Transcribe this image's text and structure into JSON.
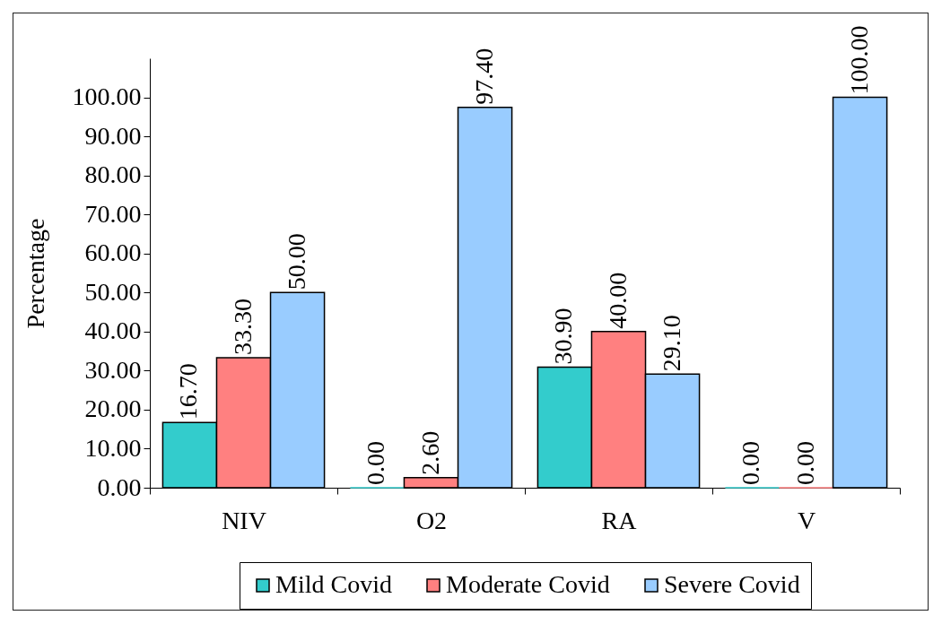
{
  "chart_data": {
    "type": "bar",
    "categories": [
      "NIV",
      "O2",
      "RA",
      "V"
    ],
    "ylabel": "Percentage",
    "ylim": [
      0,
      110
    ],
    "yticks": [
      {
        "value": 0,
        "label": "0.00"
      },
      {
        "value": 10,
        "label": "10.00"
      },
      {
        "value": 20,
        "label": "20.00"
      },
      {
        "value": 30,
        "label": "30.00"
      },
      {
        "value": 40,
        "label": "40.00"
      },
      {
        "value": 50,
        "label": "50.00"
      },
      {
        "value": 60,
        "label": "60.00"
      },
      {
        "value": 70,
        "label": "70.00"
      },
      {
        "value": 80,
        "label": "80.00"
      },
      {
        "value": 90,
        "label": "90.00"
      },
      {
        "value": 100,
        "label": "100.00"
      }
    ],
    "legend": "bottom",
    "series": [
      {
        "name": "Mild Covid",
        "color": "#33cccc",
        "values": [
          16.7,
          0,
          30.9,
          0
        ],
        "value_labels": [
          "16.70",
          "0.00",
          "30.90",
          "0.00"
        ]
      },
      {
        "name": "Moderate Covid",
        "color": "#ff8080",
        "values": [
          33.3,
          2.6,
          40,
          0
        ],
        "value_labels": [
          "33.30",
          "2.60",
          "40.00",
          "0.00"
        ]
      },
      {
        "name": "Severe Covid",
        "color": "#99ccff",
        "values": [
          50,
          97.4,
          29.1,
          100
        ],
        "value_labels": [
          "50.00",
          "97.40",
          "29.10",
          "100.00"
        ]
      }
    ]
  }
}
